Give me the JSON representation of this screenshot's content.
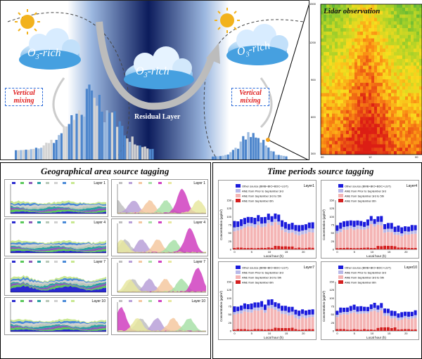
{
  "top": {
    "cloud_label": "O",
    "cloud_sub": "3",
    "cloud_suffix": "-rich",
    "vertical_mixing": [
      "Vertical",
      "mixing"
    ],
    "residual_layer": "Residual Layer",
    "lidar_title": "Lidar observation",
    "lidar_y_ticks": [
      "1500",
      "1200",
      "900",
      "600",
      "300"
    ],
    "lidar_x_ticks": [
      "00",
      "12",
      "00"
    ]
  },
  "geo": {
    "title": "Geographical area source tagging",
    "left_layers": [
      "Layer 1",
      "Layer 4",
      "Layer 7",
      "Layer 10"
    ],
    "right_layers": [
      "Layer 1",
      "Layer 4",
      "Layer 7",
      "Layer 10"
    ],
    "dates": [
      "2020-09-01",
      "2020-09-02",
      "2020-09-03",
      "2020-09-04",
      "2020-09-05",
      "2020-09-06",
      "2020-09-07"
    ],
    "xlabel": "Date"
  },
  "time": {
    "title": "Time periods source tagging",
    "layers": [
      "Layer1",
      "Layer4",
      "Layer7",
      "Layer10"
    ],
    "legend": [
      {
        "label": "Other source (BMB+BIO+BDC+LGT)",
        "color": "#1a1adc"
      },
      {
        "label": "ANE from Prior to September 3rd",
        "color": "#b8b8e8"
      },
      {
        "label": "ANE from September 3rd to 5th",
        "color": "#f4b4b4"
      },
      {
        "label": "ANE from September 6th",
        "color": "#d42020"
      }
    ],
    "ylabel": "Concentration (μg/m³)",
    "xlabel": "Local hour (h)",
    "x_ticks": [
      "0",
      "5",
      "10",
      "15",
      "20"
    ],
    "y_ticks": [
      "0",
      "25",
      "50",
      "75",
      "100",
      "125",
      "150"
    ]
  },
  "colors": {
    "sky": "#a9c8ec",
    "night": "#0c1c5c",
    "cloud": "#4aa4e4",
    "sun": "#f2b21c",
    "moon": "#f6e21c",
    "mixing_red": "#e02020",
    "mixing_border": "#2a6ad8"
  }
}
